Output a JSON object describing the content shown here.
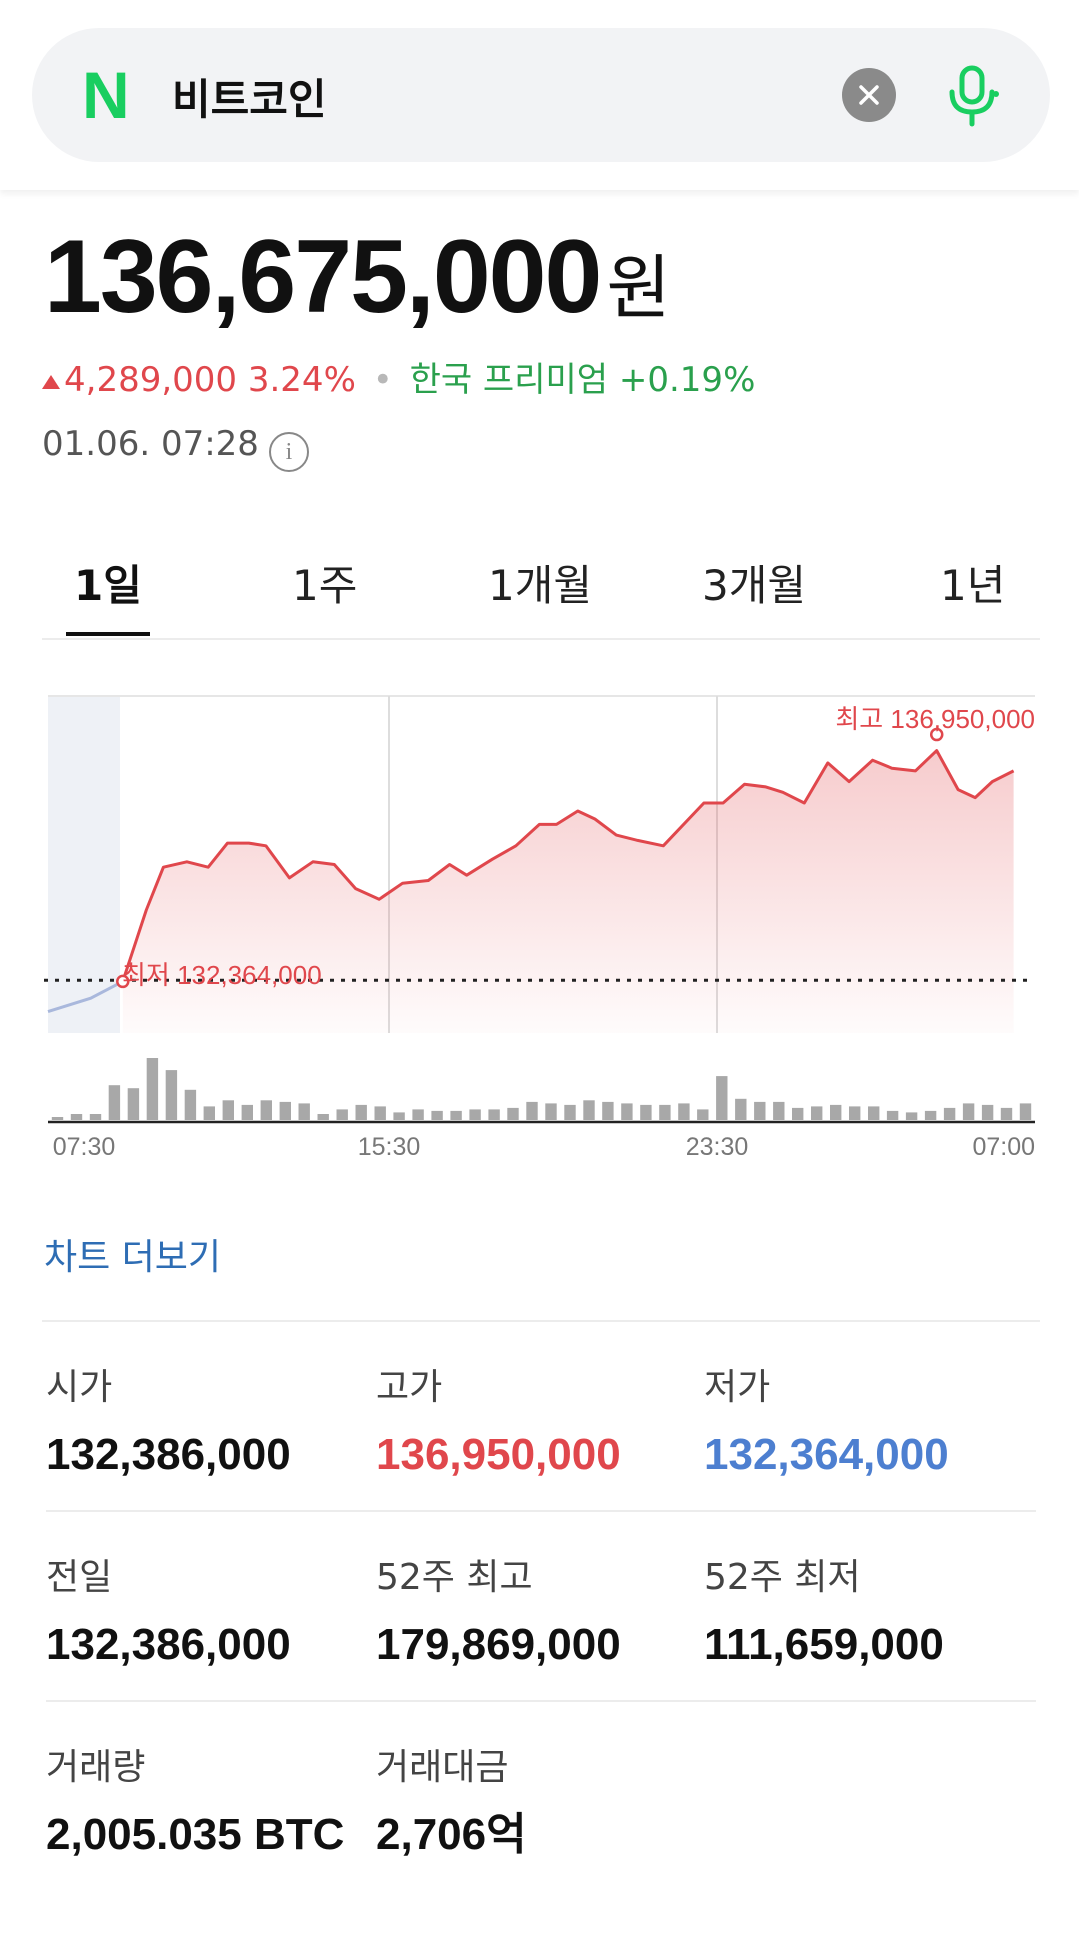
{
  "search": {
    "logo": "N",
    "query": "비트코인",
    "clear_icon": "close-icon",
    "mic_icon": "mic-icon"
  },
  "price": {
    "value": "136,675,000",
    "unit": "원"
  },
  "change": {
    "amount": "4,289,000",
    "percent": "3.24%",
    "separator": "•",
    "premium_label": "한국 프리미엄",
    "premium_value": "+0.19%"
  },
  "timestamp": "01.06. 07:28",
  "tabs": [
    {
      "label": "1일",
      "active": true
    },
    {
      "label": "1주"
    },
    {
      "label": "1개월"
    },
    {
      "label": "3개월"
    },
    {
      "label": "1년"
    }
  ],
  "chart_data": {
    "type": "line",
    "x_tick_labels": [
      "07:30",
      "15:30",
      "23:30",
      "07:00"
    ],
    "high_label": "최고 136,950,000",
    "low_label": "최저 132,364,000",
    "reference_line": 132386000,
    "ylim": [
      131400000,
      137700000
    ],
    "pre_series": [
      [
        0.0,
        131800000
      ],
      [
        1.0,
        132050000
      ],
      [
        1.75,
        132364000
      ]
    ],
    "series": [
      [
        1.75,
        132364000
      ],
      [
        2.3,
        133700000
      ],
      [
        2.7,
        134500000
      ],
      [
        3.25,
        134600000
      ],
      [
        3.75,
        134500000
      ],
      [
        4.2,
        134950000
      ],
      [
        4.7,
        134950000
      ],
      [
        5.1,
        134900000
      ],
      [
        5.65,
        134300000
      ],
      [
        6.2,
        134600000
      ],
      [
        6.7,
        134550000
      ],
      [
        7.2,
        134100000
      ],
      [
        7.75,
        133900000
      ],
      [
        8.3,
        134200000
      ],
      [
        8.9,
        134250000
      ],
      [
        9.4,
        134550000
      ],
      [
        9.8,
        134350000
      ],
      [
        10.4,
        134650000
      ],
      [
        10.95,
        134900000
      ],
      [
        11.5,
        135300000
      ],
      [
        11.9,
        135300000
      ],
      [
        12.4,
        135550000
      ],
      [
        12.8,
        135400000
      ],
      [
        13.3,
        135100000
      ],
      [
        13.8,
        135000000
      ],
      [
        14.4,
        134900000
      ],
      [
        15.35,
        135700000
      ],
      [
        15.8,
        135700000
      ],
      [
        16.3,
        136050000
      ],
      [
        16.8,
        136000000
      ],
      [
        17.2,
        135900000
      ],
      [
        17.7,
        135700000
      ],
      [
        18.25,
        136450000
      ],
      [
        18.75,
        136100000
      ],
      [
        19.3,
        136500000
      ],
      [
        19.75,
        136350000
      ],
      [
        20.3,
        136300000
      ],
      [
        20.8,
        136680000
      ],
      [
        21.3,
        135950000
      ],
      [
        21.7,
        135800000
      ],
      [
        22.1,
        136100000
      ],
      [
        22.6,
        136300000
      ]
    ],
    "volume": [
      2,
      4,
      4,
      23,
      21,
      41,
      33,
      20,
      9,
      13,
      10,
      13,
      12,
      11,
      4,
      7,
      10,
      9,
      5,
      7,
      6,
      6,
      7,
      7,
      8,
      12,
      11,
      10,
      13,
      12,
      11,
      10,
      10,
      11,
      7,
      29,
      14,
      12,
      12,
      8,
      9,
      10,
      9,
      9,
      6,
      5,
      6,
      8,
      11,
      10,
      8,
      11
    ]
  },
  "chart_more": "차트 더보기",
  "stats": [
    [
      {
        "label": "시가",
        "value": "132,386,000",
        "color": ""
      },
      {
        "label": "고가",
        "value": "136,950,000",
        "color": "red"
      },
      {
        "label": "저가",
        "value": "132,364,000",
        "color": "blue"
      }
    ],
    [
      {
        "label": "전일",
        "value": "132,386,000",
        "color": ""
      },
      {
        "label": "52주 최고",
        "value": "179,869,000",
        "color": ""
      },
      {
        "label": "52주 최저",
        "value": "111,659,000",
        "color": ""
      }
    ],
    [
      {
        "label": "거래량",
        "value": "2,005.035 BTC",
        "color": ""
      },
      {
        "label": "거래대금",
        "value": "2,706억",
        "color": ""
      }
    ]
  ],
  "colors": {
    "up": "#e0474c",
    "down": "#4d7fd0",
    "premium": "#2aa04d",
    "brand": "#19ce60",
    "link": "#2e6db4"
  }
}
